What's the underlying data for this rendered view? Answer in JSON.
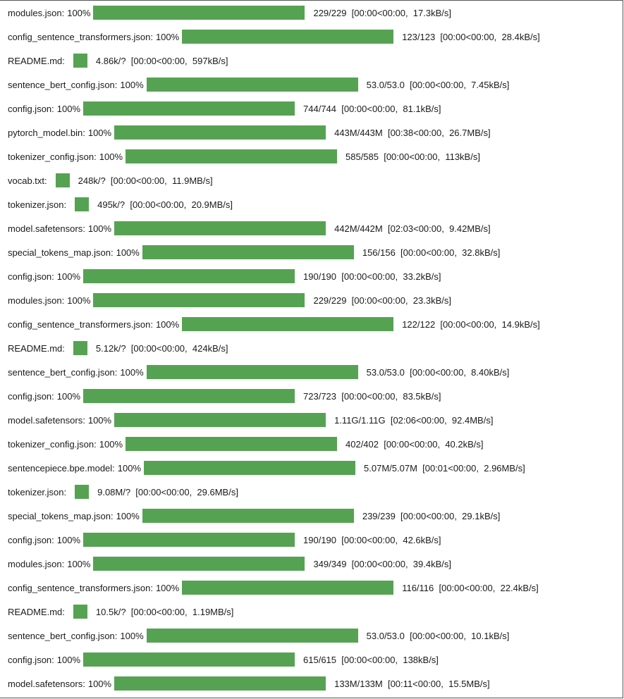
{
  "colors": {
    "bar": "#55a352",
    "text": "#1a1a1a",
    "border": "#555555"
  },
  "rows": [
    {
      "name": "modules.json:",
      "pct": "100%",
      "progress": 1.0,
      "kind": "full",
      "stats": "229/229  [00:00<00:00,  17.3kB/s]"
    },
    {
      "name": "config_sentence_transformers.json:",
      "pct": "100%",
      "progress": 1.0,
      "kind": "full",
      "stats": "123/123  [00:00<00:00,  28.4kB/s]"
    },
    {
      "name": "README.md:",
      "pct": "",
      "progress": 1.0,
      "kind": "small",
      "stats": "4.86k/?  [00:00<00:00,  597kB/s]"
    },
    {
      "name": "sentence_bert_config.json:",
      "pct": "100%",
      "progress": 1.0,
      "kind": "full",
      "stats": "53.0/53.0  [00:00<00:00,  7.45kB/s]"
    },
    {
      "name": "config.json:",
      "pct": "100%",
      "progress": 1.0,
      "kind": "full",
      "stats": "744/744  [00:00<00:00,  81.1kB/s]"
    },
    {
      "name": "pytorch_model.bin:",
      "pct": "100%",
      "progress": 1.0,
      "kind": "full",
      "stats": "443M/443M  [00:38<00:00,  26.7MB/s]"
    },
    {
      "name": "tokenizer_config.json:",
      "pct": "100%",
      "progress": 1.0,
      "kind": "full",
      "stats": "585/585  [00:00<00:00,  113kB/s]"
    },
    {
      "name": "vocab.txt:",
      "pct": "",
      "progress": 1.0,
      "kind": "small",
      "stats": "248k/?  [00:00<00:00,  11.9MB/s]"
    },
    {
      "name": "tokenizer.json:",
      "pct": "",
      "progress": 1.0,
      "kind": "small",
      "stats": "495k/?  [00:00<00:00,  20.9MB/s]"
    },
    {
      "name": "model.safetensors:",
      "pct": "100%",
      "progress": 1.0,
      "kind": "full",
      "stats": "442M/442M  [02:03<00:00,  9.42MB/s]"
    },
    {
      "name": "special_tokens_map.json:",
      "pct": "100%",
      "progress": 1.0,
      "kind": "full",
      "stats": "156/156  [00:00<00:00,  32.8kB/s]"
    },
    {
      "name": "config.json:",
      "pct": "100%",
      "progress": 1.0,
      "kind": "full",
      "stats": "190/190  [00:00<00:00,  33.2kB/s]"
    },
    {
      "name": "modules.json:",
      "pct": "100%",
      "progress": 1.0,
      "kind": "full",
      "stats": "229/229  [00:00<00:00,  23.3kB/s]"
    },
    {
      "name": "config_sentence_transformers.json:",
      "pct": "100%",
      "progress": 1.0,
      "kind": "full",
      "stats": "122/122  [00:00<00:00,  14.9kB/s]"
    },
    {
      "name": "README.md:",
      "pct": "",
      "progress": 1.0,
      "kind": "small",
      "stats": "5.12k/?  [00:00<00:00,  424kB/s]"
    },
    {
      "name": "sentence_bert_config.json:",
      "pct": "100%",
      "progress": 1.0,
      "kind": "full",
      "stats": "53.0/53.0  [00:00<00:00,  8.40kB/s]"
    },
    {
      "name": "config.json:",
      "pct": "100%",
      "progress": 1.0,
      "kind": "full",
      "stats": "723/723  [00:00<00:00,  83.5kB/s]"
    },
    {
      "name": "model.safetensors:",
      "pct": "100%",
      "progress": 1.0,
      "kind": "full",
      "stats": "1.11G/1.11G  [02:06<00:00,  92.4MB/s]"
    },
    {
      "name": "tokenizer_config.json:",
      "pct": "100%",
      "progress": 1.0,
      "kind": "full",
      "stats": "402/402  [00:00<00:00,  40.2kB/s]"
    },
    {
      "name": "sentencepiece.bpe.model:",
      "pct": "100%",
      "progress": 1.0,
      "kind": "full",
      "stats": "5.07M/5.07M  [00:01<00:00,  2.96MB/s]"
    },
    {
      "name": "tokenizer.json:",
      "pct": "",
      "progress": 1.0,
      "kind": "small",
      "stats": "9.08M/?  [00:00<00:00,  29.6MB/s]"
    },
    {
      "name": "special_tokens_map.json:",
      "pct": "100%",
      "progress": 1.0,
      "kind": "full",
      "stats": "239/239  [00:00<00:00,  29.1kB/s]"
    },
    {
      "name": "config.json:",
      "pct": "100%",
      "progress": 1.0,
      "kind": "full",
      "stats": "190/190  [00:00<00:00,  42.6kB/s]"
    },
    {
      "name": "modules.json:",
      "pct": "100%",
      "progress": 1.0,
      "kind": "full",
      "stats": "349/349  [00:00<00:00,  39.4kB/s]"
    },
    {
      "name": "config_sentence_transformers.json:",
      "pct": "100%",
      "progress": 1.0,
      "kind": "full",
      "stats": "116/116  [00:00<00:00,  22.4kB/s]"
    },
    {
      "name": "README.md:",
      "pct": "",
      "progress": 1.0,
      "kind": "small",
      "stats": "10.5k/?  [00:00<00:00,  1.19MB/s]"
    },
    {
      "name": "sentence_bert_config.json:",
      "pct": "100%",
      "progress": 1.0,
      "kind": "full",
      "stats": "53.0/53.0  [00:00<00:00,  10.1kB/s]"
    },
    {
      "name": "config.json:",
      "pct": "100%",
      "progress": 1.0,
      "kind": "full",
      "stats": "615/615  [00:00<00:00,  138kB/s]"
    },
    {
      "name": "model.safetensors:",
      "pct": "100%",
      "progress": 1.0,
      "kind": "full",
      "stats": "133M/133M  [00:11<00:00,  15.5MB/s]"
    }
  ]
}
